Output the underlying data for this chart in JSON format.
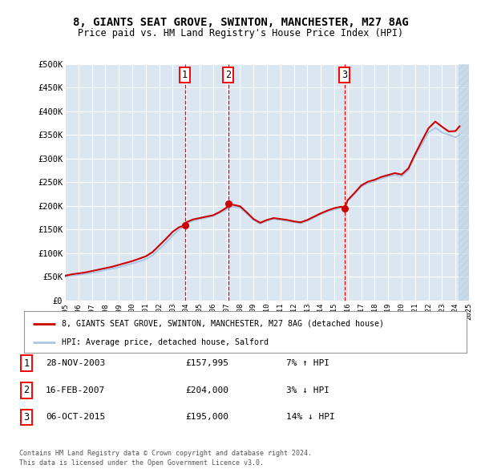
{
  "title": "8, GIANTS SEAT GROVE, SWINTON, MANCHESTER, M27 8AG",
  "subtitle": "Price paid vs. HM Land Registry's House Price Index (HPI)",
  "background_color": "#ffffff",
  "plot_bg_color": "#dce6f1",
  "grid_color": "#ffffff",
  "hpi_line_color": "#a8c8e8",
  "price_line_color": "#cc0000",
  "hatch_color": "#b8cfe0",
  "ylim": [
    0,
    500000
  ],
  "yticks": [
    0,
    50000,
    100000,
    150000,
    200000,
    250000,
    300000,
    350000,
    400000,
    450000,
    500000
  ],
  "ytick_labels": [
    "£0",
    "£50K",
    "£100K",
    "£150K",
    "£200K",
    "£250K",
    "£300K",
    "£350K",
    "£400K",
    "£450K",
    "£500K"
  ],
  "xmin_year": 1995,
  "xmax_year": 2025,
  "xticks": [
    1995,
    1996,
    1997,
    1998,
    1999,
    2000,
    2001,
    2002,
    2003,
    2004,
    2005,
    2006,
    2007,
    2008,
    2009,
    2010,
    2011,
    2012,
    2013,
    2014,
    2015,
    2016,
    2017,
    2018,
    2019,
    2020,
    2021,
    2022,
    2023,
    2024,
    2025
  ],
  "sale_markers": [
    {
      "num": 1,
      "year": 2003.91,
      "price": 157995,
      "label": "28-NOV-2003",
      "price_str": "£157,995",
      "hpi_str": "7% ↑ HPI"
    },
    {
      "num": 2,
      "year": 2007.12,
      "price": 204000,
      "label": "16-FEB-2007",
      "price_str": "£204,000",
      "hpi_str": "3% ↓ HPI"
    },
    {
      "num": 3,
      "year": 2015.76,
      "price": 195000,
      "label": "06-OCT-2015",
      "price_str": "£195,000",
      "hpi_str": "14% ↓ HPI"
    }
  ],
  "legend_house_label": "8, GIANTS SEAT GROVE, SWINTON, MANCHESTER, M27 8AG (detached house)",
  "legend_hpi_label": "HPI: Average price, detached house, Salford",
  "footer_line1": "Contains HM Land Registry data © Crown copyright and database right 2024.",
  "footer_line2": "This data is licensed under the Open Government Licence v3.0.",
  "hpi_data": {
    "years": [
      1995.0,
      1995.5,
      1996.0,
      1996.5,
      1997.0,
      1997.5,
      1998.0,
      1998.5,
      1999.0,
      1999.5,
      2000.0,
      2000.5,
      2001.0,
      2001.5,
      2002.0,
      2002.5,
      2003.0,
      2003.5,
      2003.91,
      2004.0,
      2004.5,
      2005.0,
      2005.5,
      2006.0,
      2006.5,
      2007.0,
      2007.12,
      2007.5,
      2008.0,
      2008.5,
      2009.0,
      2009.5,
      2010.0,
      2010.5,
      2011.0,
      2011.5,
      2012.0,
      2012.5,
      2013.0,
      2013.5,
      2014.0,
      2014.5,
      2015.0,
      2015.5,
      2015.76,
      2016.0,
      2016.5,
      2017.0,
      2017.5,
      2018.0,
      2018.5,
      2019.0,
      2019.5,
      2020.0,
      2020.5,
      2021.0,
      2021.5,
      2022.0,
      2022.5,
      2023.0,
      2023.5,
      2024.0,
      2024.3
    ],
    "values": [
      50000,
      52000,
      54000,
      56000,
      58000,
      61000,
      64000,
      67000,
      70000,
      74000,
      78000,
      82000,
      87000,
      95000,
      108000,
      122000,
      137000,
      150000,
      157000,
      162000,
      168000,
      172000,
      175000,
      178000,
      185000,
      192000,
      196000,
      198000,
      196000,
      183000,
      170000,
      162000,
      168000,
      172000,
      170000,
      168000,
      165000,
      163000,
      168000,
      175000,
      182000,
      188000,
      192000,
      196000,
      198000,
      210000,
      225000,
      240000,
      248000,
      252000,
      258000,
      262000,
      265000,
      262000,
      275000,
      305000,
      330000,
      355000,
      365000,
      355000,
      350000,
      345000,
      350000
    ]
  },
  "price_data": {
    "years": [
      1995.0,
      1995.5,
      1996.0,
      1996.5,
      1997.0,
      1997.5,
      1998.0,
      1998.5,
      1999.0,
      1999.5,
      2000.0,
      2000.5,
      2001.0,
      2001.5,
      2002.0,
      2002.5,
      2003.0,
      2003.5,
      2003.91,
      2004.0,
      2004.5,
      2005.0,
      2005.5,
      2006.0,
      2006.5,
      2007.0,
      2007.12,
      2007.5,
      2008.0,
      2008.5,
      2009.0,
      2009.5,
      2010.0,
      2010.5,
      2011.0,
      2011.5,
      2012.0,
      2012.5,
      2013.0,
      2013.5,
      2014.0,
      2014.5,
      2015.0,
      2015.5,
      2015.76,
      2016.0,
      2016.5,
      2017.0,
      2017.5,
      2018.0,
      2018.5,
      2019.0,
      2019.5,
      2020.0,
      2020.5,
      2021.0,
      2021.5,
      2022.0,
      2022.5,
      2023.0,
      2023.5,
      2024.0,
      2024.3
    ],
    "values": [
      52000,
      55000,
      57000,
      59000,
      62000,
      65000,
      68000,
      71000,
      75000,
      79000,
      83000,
      88000,
      93000,
      102000,
      116000,
      130000,
      145000,
      155000,
      158000,
      165000,
      171000,
      174000,
      177000,
      180000,
      187000,
      196000,
      204000,
      202000,
      199000,
      186000,
      172000,
      164000,
      170000,
      174000,
      172000,
      170000,
      167000,
      165000,
      170000,
      177000,
      184000,
      190000,
      195000,
      198000,
      195000,
      212000,
      227000,
      243000,
      251000,
      255000,
      261000,
      265000,
      269000,
      266000,
      279000,
      309000,
      337000,
      364000,
      378000,
      367000,
      357000,
      358000,
      368000
    ]
  }
}
